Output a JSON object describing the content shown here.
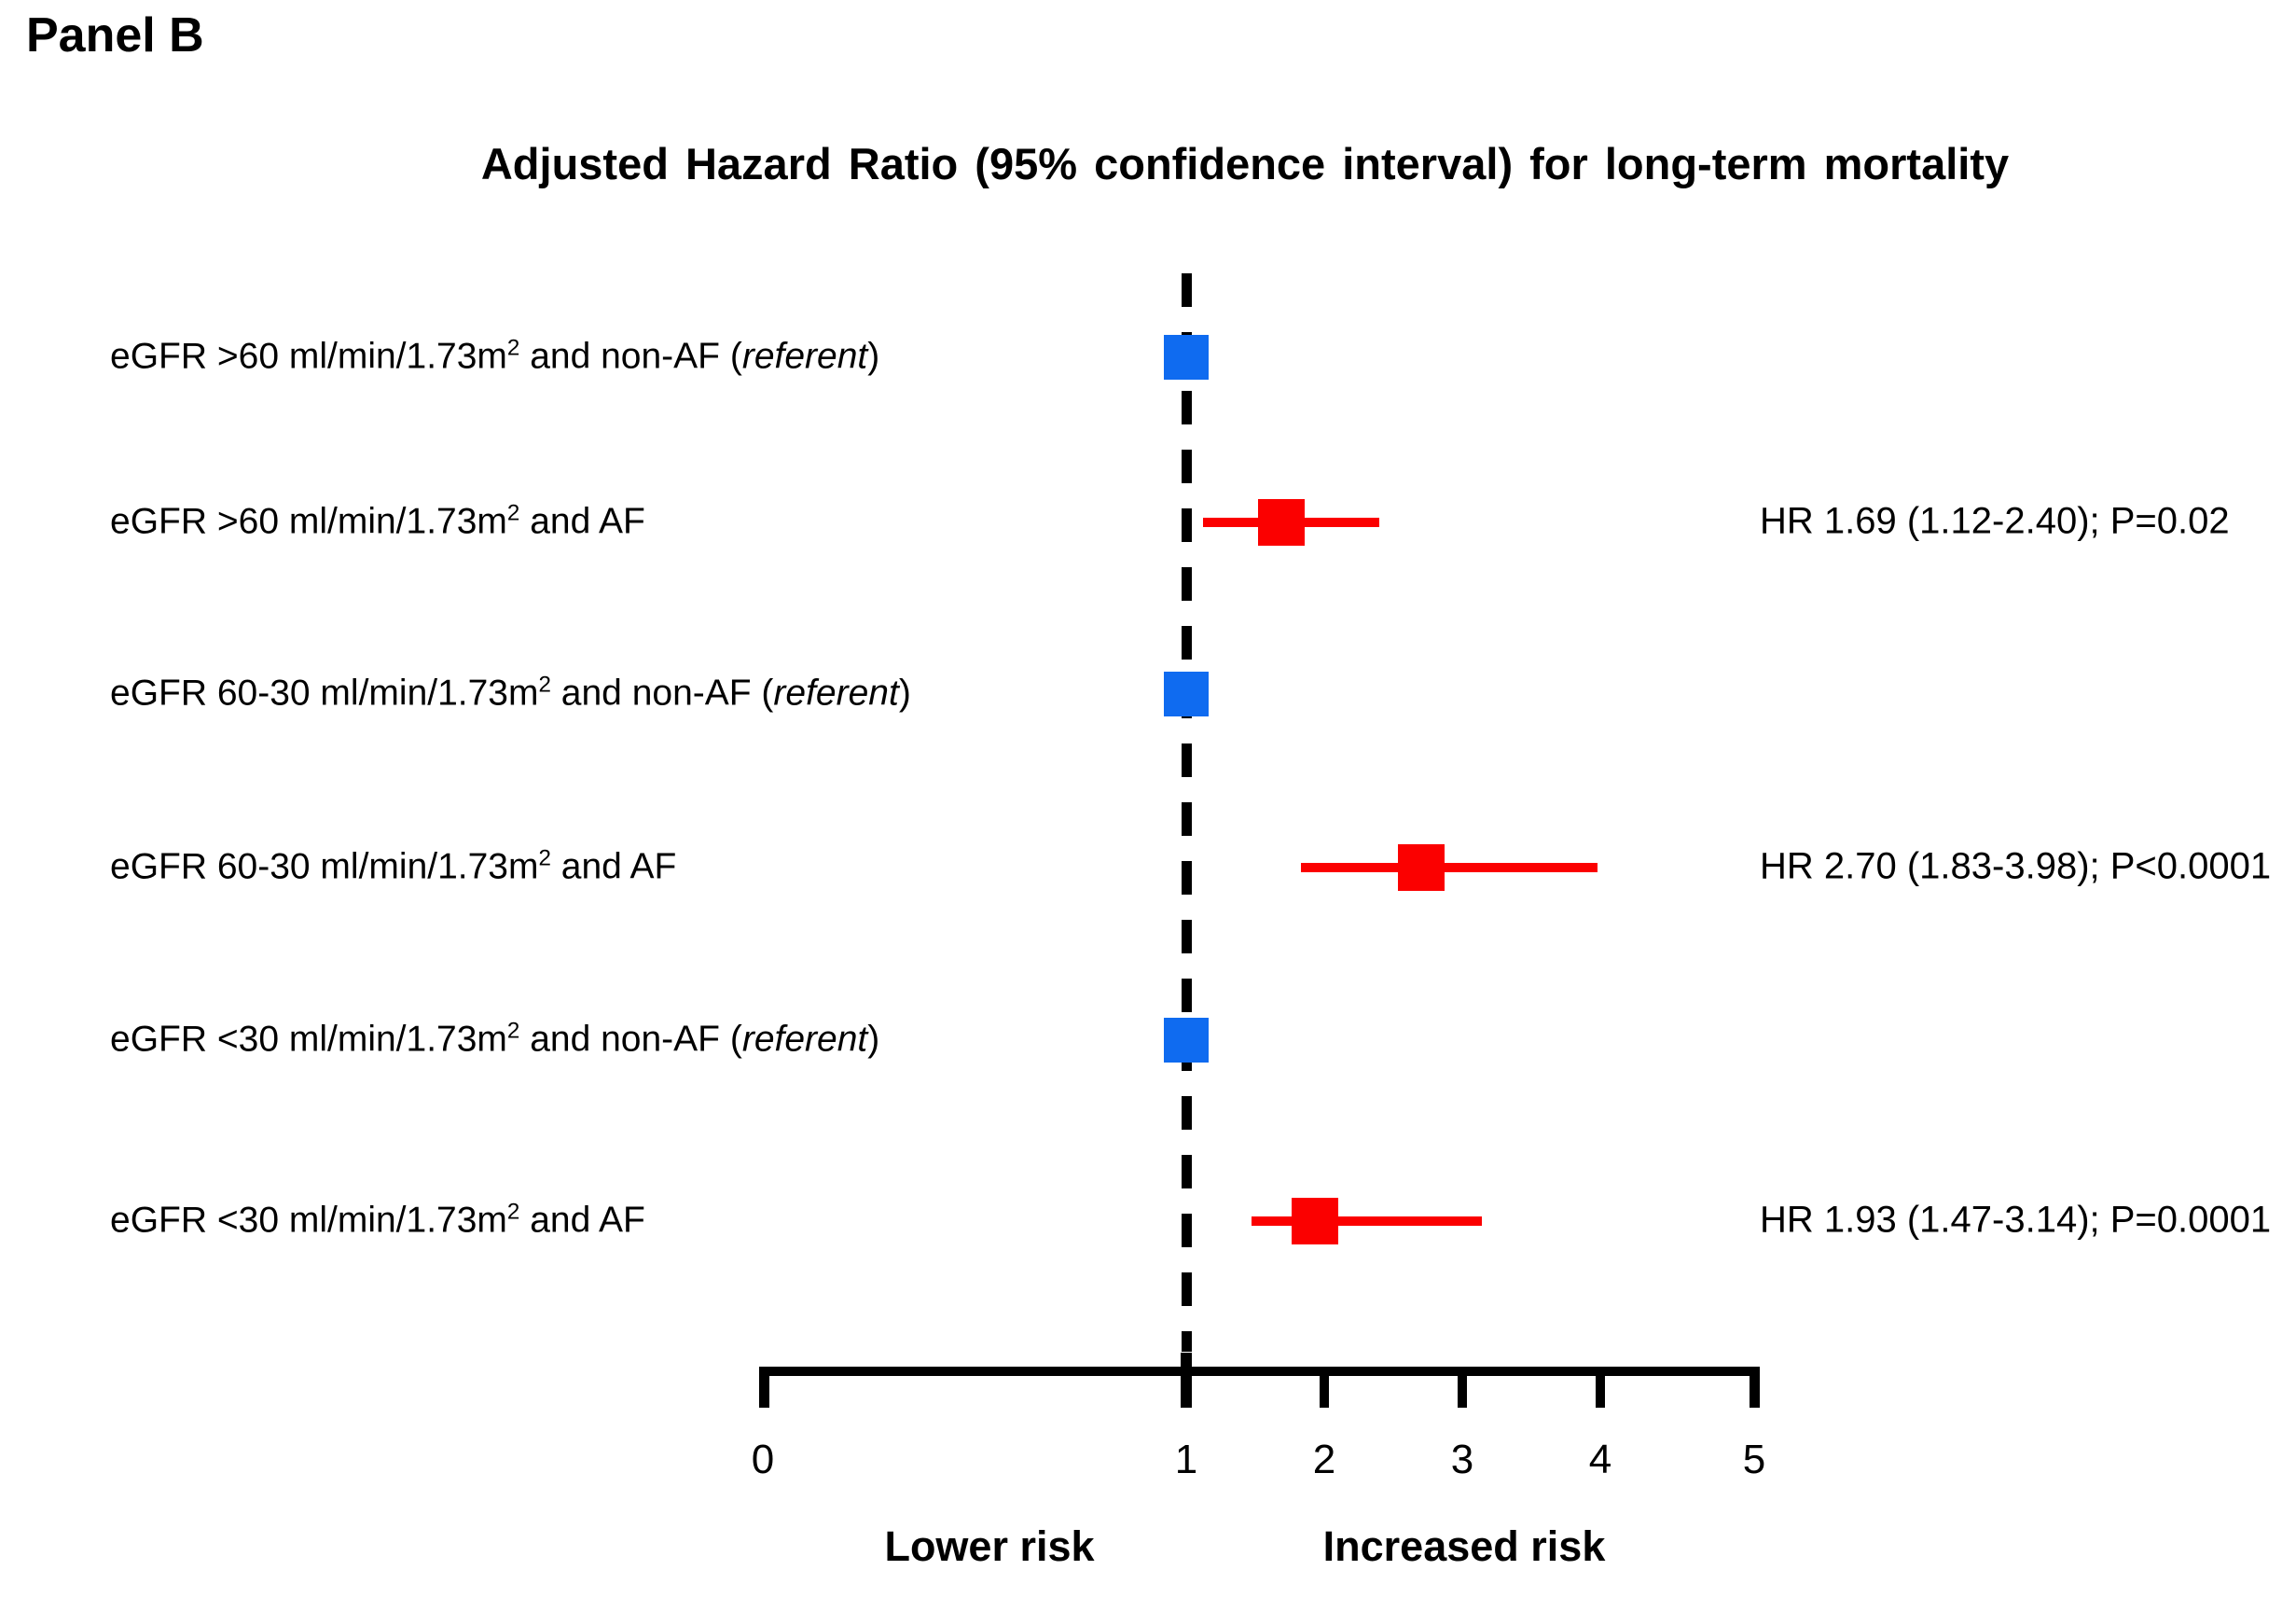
{
  "panel_label": "Panel B",
  "chart_data": {
    "type": "scatter",
    "subtype": "forest-plot",
    "title": "Adjusted Hazard Ratio (95% confidence interval) for long-term mortality",
    "x_axis": {
      "range": [
        0,
        5
      ],
      "ticks": [
        0,
        1,
        2,
        3,
        4,
        5
      ],
      "tick_labels": [
        "0",
        "1",
        "2",
        "3",
        "4",
        "5"
      ],
      "reference_value": 1,
      "label_lower": "Lower risk",
      "label_upper": "Increased risk",
      "grid": false
    },
    "colors": {
      "referent_marker": "#0F6BF0",
      "effect_marker": "#FB0000",
      "axis": "#000000",
      "text": "#000000"
    },
    "rows": [
      {
        "label": {
          "base": "eGFR >60 ml/min/1.73m",
          "sup": "2",
          "after": " and non-AF (",
          "italic": "referent",
          "close": ")"
        },
        "group": "referent",
        "hr": 1.0,
        "ci_low": null,
        "ci_high": null,
        "annotation": ""
      },
      {
        "label": {
          "base": "eGFR >60 ml/min/1.73m",
          "sup": "2",
          "after": " and AF",
          "italic": "",
          "close": ""
        },
        "group": "effect",
        "hr": 1.69,
        "ci_low": 1.12,
        "ci_high": 2.4,
        "annotation": "HR 1.69 (1.12-2.40); P=0.02"
      },
      {
        "label": {
          "base": "eGFR 60-30 ml/min/1.73m",
          "sup": "2",
          "after": " and non-AF (",
          "italic": "referent",
          "close": ")"
        },
        "group": "referent",
        "hr": 1.0,
        "ci_low": null,
        "ci_high": null,
        "annotation": ""
      },
      {
        "label": {
          "base": "eGFR 60-30 ml/min/1.73m",
          "sup": "2",
          "after": " and AF",
          "italic": "",
          "close": ""
        },
        "group": "effect",
        "hr": 2.7,
        "ci_low": 1.83,
        "ci_high": 3.98,
        "annotation": "HR 2.70 (1.83-3.98); P<0.0001"
      },
      {
        "label": {
          "base": "eGFR <30 ml/min/1.73m",
          "sup": "2",
          "after": " and non-AF (",
          "italic": "referent",
          "close": ")"
        },
        "group": "referent",
        "hr": 1.0,
        "ci_low": null,
        "ci_high": null,
        "annotation": ""
      },
      {
        "label": {
          "base": "eGFR <30 ml/min/1.73m",
          "sup": "2",
          "after": " and AF",
          "italic": "",
          "close": ""
        },
        "group": "effect",
        "hr": 1.93,
        "ci_low": 1.47,
        "ci_high": 3.14,
        "annotation": "HR 1.93 (1.47-3.14); P=0.0001"
      }
    ]
  }
}
